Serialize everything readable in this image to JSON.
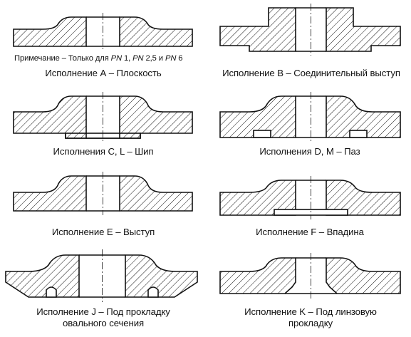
{
  "note": {
    "label": "Примечание",
    "dash": " – Только для ",
    "pn_a": "PN",
    "v1": " 1, ",
    "pn_b": "PN",
    "v2": " 2,5 и ",
    "pn_c": "PN",
    "v3": " 6"
  },
  "captions": {
    "a": "Исполнение А – Плоскость",
    "b": "Исполнение В – Соединительный выступ",
    "c": "Исполнения С, L – Шип",
    "d": "Исполнения D, М – Паз",
    "e": "Исполнение Е – Выступ",
    "f": "Исполнение F – Впадина",
    "j_line1": "Исполнение J – Под прокладку",
    "j_line2": "овального сечения",
    "k_line1": "Исполнение K – Под линзовую",
    "k_line2": "прокладку"
  },
  "colors": {
    "line": "#111111",
    "background": "#ffffff"
  }
}
